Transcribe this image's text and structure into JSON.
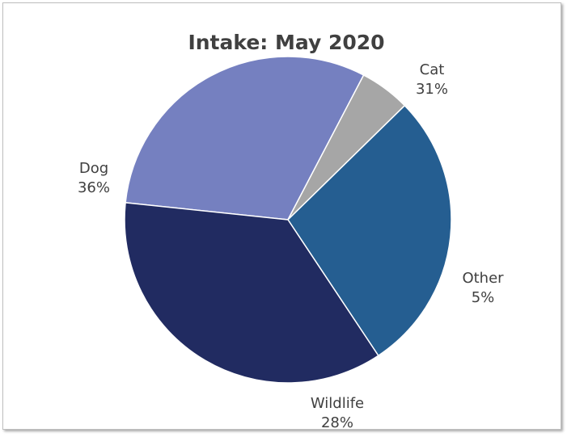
{
  "chart_data": {
    "type": "pie",
    "title": "Intake: May 2020",
    "categories": [
      "Cat",
      "Other",
      "Wildlife",
      "Dog"
    ],
    "values": [
      31,
      5,
      28,
      36
    ],
    "labels": [
      "31%",
      "5%",
      "28%",
      "36%"
    ],
    "colors": [
      "#7580c0",
      "#a6a6a6",
      "#255e91",
      "#212b61"
    ],
    "legend": "none"
  }
}
